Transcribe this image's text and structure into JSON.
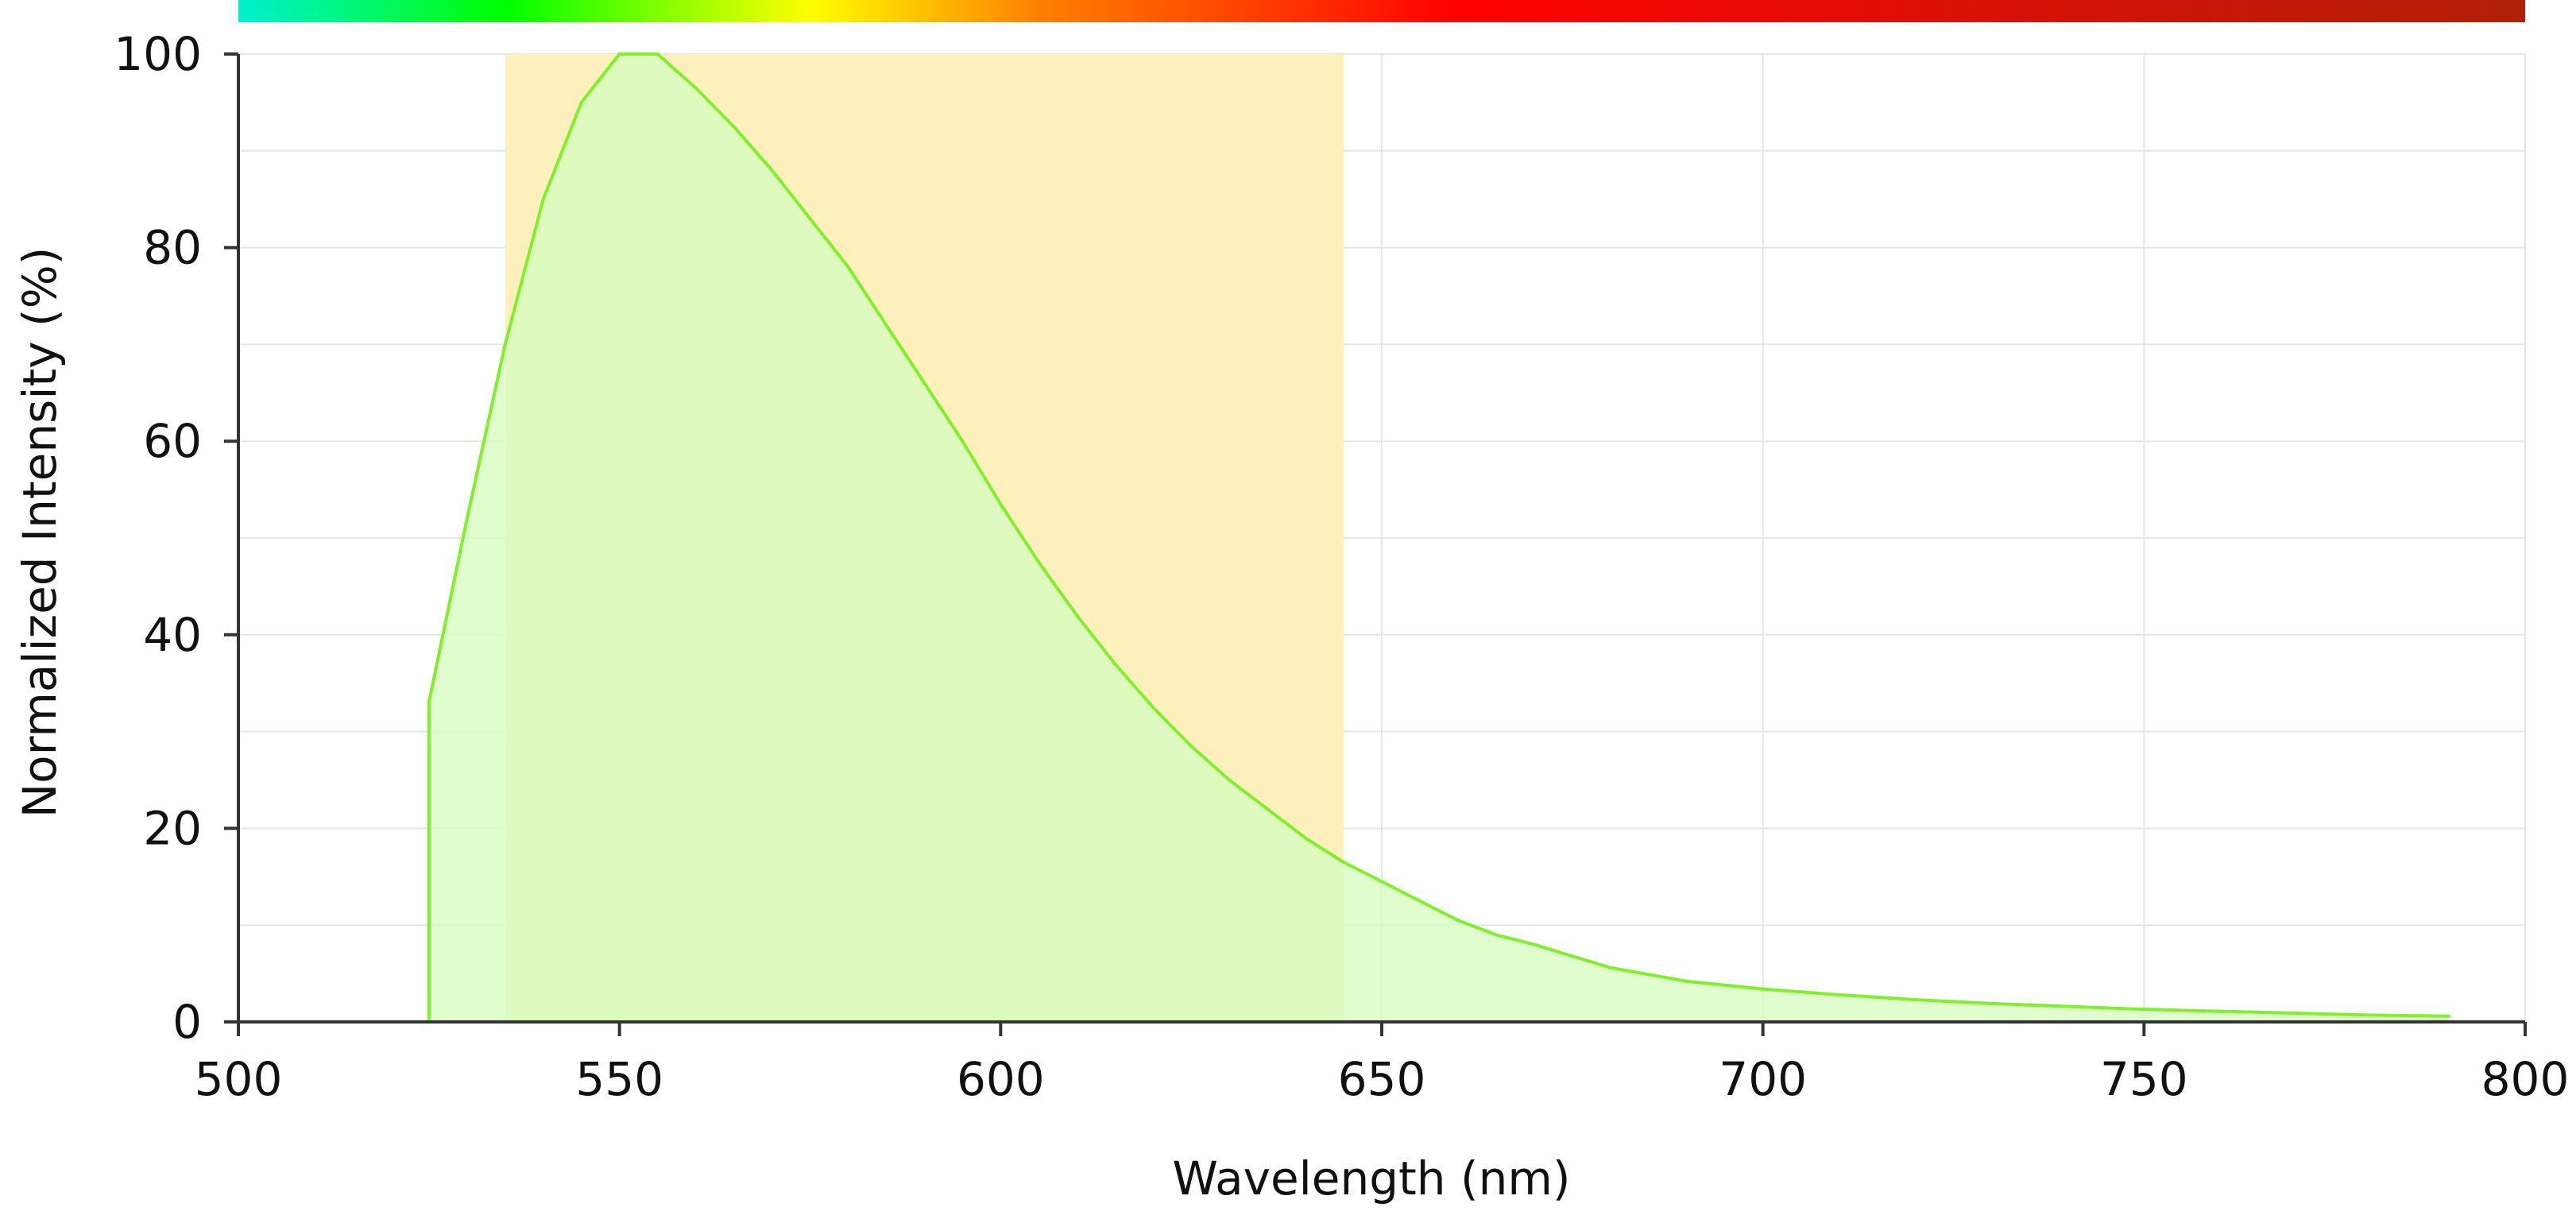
{
  "chart_data": {
    "type": "area",
    "title": "",
    "xlabel": "Wavelength (nm)",
    "ylabel": "Normalized Intensity (%)",
    "xlim": [
      500,
      800
    ],
    "ylim": [
      0,
      100
    ],
    "x_ticks": [
      500,
      550,
      600,
      650,
      700,
      750,
      800
    ],
    "y_ticks": [
      0,
      20,
      40,
      60,
      80,
      100
    ],
    "x_tick_labels": [
      "500",
      "550",
      "600",
      "650",
      "700",
      "750",
      "800"
    ],
    "y_tick_labels": [
      "0",
      "20",
      "40",
      "60",
      "80",
      "100"
    ],
    "grid": true,
    "spectrum_bar": {
      "x_range": [
        500,
        800
      ],
      "gradient": [
        {
          "x": 500,
          "color": "#00f0d0"
        },
        {
          "x": 535,
          "color": "#00ff00"
        },
        {
          "x": 575,
          "color": "#ffff00"
        },
        {
          "x": 605,
          "color": "#ff8000"
        },
        {
          "x": 660,
          "color": "#ff0000"
        },
        {
          "x": 800,
          "color": "#b02008"
        }
      ]
    },
    "highlight_band": {
      "x_start": 535,
      "x_end": 645,
      "color": "#fef0bc"
    },
    "series": [
      {
        "line_color": "#7ff02a",
        "fill_color": "#d6fcbf",
        "x": [
          525,
          525,
          530,
          535,
          540,
          545,
          550,
          555,
          560,
          565,
          570,
          575,
          580,
          585,
          590,
          595,
          600,
          605,
          610,
          615,
          620,
          625,
          630,
          635,
          640,
          645,
          650,
          655,
          660,
          665,
          670,
          680,
          690,
          700,
          710,
          720,
          730,
          740,
          750,
          760,
          770,
          780,
          790
        ],
        "y": [
          0,
          33,
          52,
          70,
          85,
          95,
          100,
          100,
          96.5,
          92.5,
          88,
          83,
          78,
          72,
          66,
          60,
          53.5,
          47.5,
          42,
          37,
          32.5,
          28.5,
          25,
          22,
          19,
          16.5,
          14.5,
          12.5,
          10.5,
          9,
          8,
          5.6,
          4.2,
          3.4,
          2.8,
          2.3,
          1.9,
          1.6,
          1.3,
          1.1,
          0.9,
          0.7,
          0.6
        ]
      }
    ]
  }
}
